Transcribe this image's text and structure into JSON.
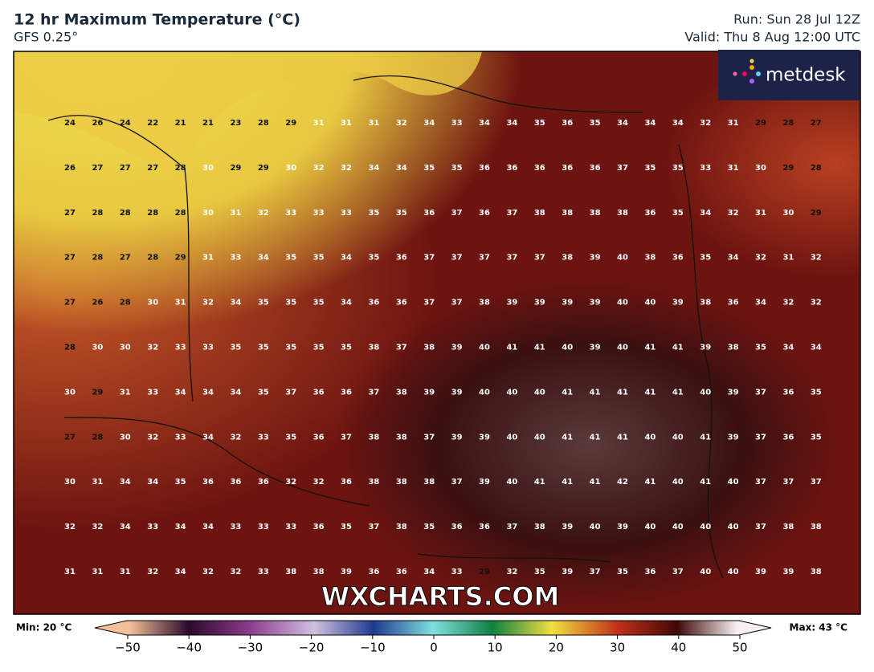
{
  "header": {
    "title": "12 hr Maximum Temperature (°C)",
    "subtitle": "GFS 0.25°",
    "run": "Run: Sun 28 Jul 12Z",
    "valid": "Valid: Thu 8 Aug 12:00 UTC"
  },
  "logo": "metdesk",
  "watermark": "WXCHARTS.COM",
  "grid": {
    "rows": [
      [
        24,
        26,
        24,
        22,
        21,
        21,
        23,
        28,
        29,
        31,
        31,
        31,
        32,
        34,
        33,
        34,
        34,
        35,
        36,
        35,
        34,
        34,
        34,
        32,
        31,
        29,
        28,
        27
      ],
      [
        26,
        27,
        27,
        27,
        28,
        30,
        29,
        29,
        30,
        32,
        32,
        34,
        34,
        35,
        35,
        36,
        36,
        36,
        36,
        36,
        37,
        35,
        35,
        33,
        31,
        30,
        29,
        28
      ],
      [
        27,
        28,
        28,
        28,
        28,
        30,
        31,
        32,
        33,
        33,
        33,
        35,
        35,
        36,
        37,
        36,
        37,
        38,
        38,
        38,
        38,
        36,
        35,
        34,
        32,
        31,
        30,
        29
      ],
      [
        27,
        28,
        27,
        28,
        29,
        31,
        33,
        34,
        35,
        35,
        34,
        35,
        36,
        37,
        37,
        37,
        37,
        37,
        38,
        39,
        40,
        38,
        36,
        35,
        34,
        32,
        31,
        32
      ],
      [
        27,
        26,
        28,
        30,
        31,
        32,
        34,
        35,
        35,
        35,
        34,
        36,
        36,
        37,
        37,
        38,
        39,
        39,
        39,
        39,
        40,
        40,
        39,
        38,
        36,
        34,
        32,
        32
      ],
      [
        28,
        30,
        30,
        32,
        33,
        33,
        35,
        35,
        35,
        35,
        35,
        38,
        37,
        38,
        39,
        40,
        41,
        41,
        40,
        39,
        40,
        41,
        41,
        39,
        38,
        35,
        34,
        34
      ],
      [
        30,
        29,
        31,
        33,
        34,
        34,
        34,
        35,
        37,
        36,
        36,
        37,
        38,
        39,
        39,
        40,
        40,
        40,
        41,
        41,
        41,
        41,
        41,
        40,
        39,
        37,
        36,
        35
      ],
      [
        27,
        28,
        30,
        32,
        33,
        34,
        32,
        33,
        35,
        36,
        37,
        38,
        38,
        37,
        39,
        39,
        40,
        40,
        41,
        41,
        41,
        40,
        40,
        41,
        39,
        37,
        36,
        35
      ],
      [
        30,
        31,
        34,
        34,
        35,
        36,
        36,
        36,
        32,
        32,
        36,
        38,
        38,
        38,
        37,
        39,
        40,
        41,
        41,
        41,
        42,
        41,
        40,
        41,
        40,
        37,
        37,
        37
      ],
      [
        32,
        32,
        34,
        33,
        34,
        34,
        33,
        33,
        33,
        36,
        35,
        37,
        38,
        35,
        36,
        36,
        37,
        38,
        39,
        40,
        39,
        40,
        40,
        40,
        40,
        37,
        38,
        38
      ],
      [
        31,
        31,
        31,
        32,
        34,
        32,
        32,
        33,
        38,
        38,
        39,
        36,
        36,
        34,
        33,
        29,
        32,
        35,
        39,
        37,
        35,
        36,
        37,
        40,
        40,
        39,
        39,
        38
      ]
    ]
  },
  "colorbar": {
    "min_label": "Min: 20 °C",
    "max_label": "Max: 43 °C",
    "ticks": [
      {
        "value": -50,
        "label": "−50"
      },
      {
        "value": -40,
        "label": "−40"
      },
      {
        "value": -30,
        "label": "−30"
      },
      {
        "value": -20,
        "label": "−20"
      },
      {
        "value": -10,
        "label": "−10"
      },
      0,
      10,
      20,
      30,
      40,
      50
    ]
  }
}
